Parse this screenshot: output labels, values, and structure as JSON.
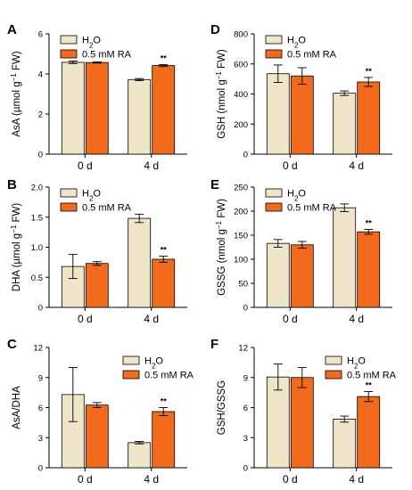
{
  "colors": {
    "h2o": "#efe6c9",
    "ra": "#f36a1b"
  },
  "legend": {
    "h2o_main": "H",
    "h2o_sub": "2",
    "h2o_tail": "O",
    "ra": "0.5 mM RA"
  },
  "categories": [
    "0 d",
    "4 d"
  ],
  "chart_data": [
    {
      "panel": "A",
      "type": "bar",
      "ylabel_main": "AsA (µmol g",
      "ylabel_sup": "−1",
      "ylabel_tail": " FW)",
      "ylim": [
        0,
        6
      ],
      "yticks": [
        "0",
        "2",
        "4",
        "6"
      ],
      "categories": [
        "0 d",
        "4 d"
      ],
      "series": [
        {
          "name": "H2O",
          "values": [
            4.58,
            3.72
          ],
          "errors": [
            0.06,
            0.05
          ]
        },
        {
          "name": "0.5 mM RA",
          "values": [
            4.57,
            4.42
          ],
          "errors": [
            0.03,
            0.05
          ]
        }
      ],
      "annotations": [
        {
          "text": "**",
          "category": "4 d",
          "series": "0.5 mM RA"
        }
      ]
    },
    {
      "panel": "B",
      "type": "bar",
      "ylabel_main": "DHA (µmol g",
      "ylabel_sup": "−1",
      "ylabel_tail": " FW)",
      "ylim": [
        0,
        2.0
      ],
      "yticks": [
        "0",
        "0.5",
        "1.0",
        "1.5",
        "2.0"
      ],
      "categories": [
        "0 d",
        "4 d"
      ],
      "series": [
        {
          "name": "H2O",
          "values": [
            0.68,
            1.48
          ],
          "errors": [
            0.2,
            0.07
          ]
        },
        {
          "name": "0.5 mM RA",
          "values": [
            0.73,
            0.8
          ],
          "errors": [
            0.03,
            0.05
          ]
        }
      ],
      "annotations": [
        {
          "text": "**",
          "category": "4 d",
          "series": "0.5 mM RA"
        }
      ]
    },
    {
      "panel": "C",
      "type": "bar",
      "ylabel_main": "AsA/DHA",
      "ylabel_sup": "",
      "ylabel_tail": "",
      "ylim": [
        0,
        12
      ],
      "yticks": [
        "0",
        "3",
        "6",
        "9",
        "12"
      ],
      "categories": [
        "0 d",
        "4 d"
      ],
      "series": [
        {
          "name": "H2O",
          "values": [
            7.3,
            2.5
          ],
          "errors": [
            2.7,
            0.12
          ]
        },
        {
          "name": "0.5 mM RA",
          "values": [
            6.25,
            5.6
          ],
          "errors": [
            0.25,
            0.4
          ]
        }
      ],
      "annotations": [
        {
          "text": "**",
          "category": "4 d",
          "series": "0.5 mM RA"
        }
      ]
    },
    {
      "panel": "D",
      "type": "bar",
      "ylabel_main": "GSH (nmol g",
      "ylabel_sup": "−1",
      "ylabel_tail": " FW)",
      "ylim": [
        0,
        800
      ],
      "yticks": [
        "0",
        "200",
        "400",
        "600",
        "800"
      ],
      "categories": [
        "0 d",
        "4 d"
      ],
      "series": [
        {
          "name": "H2O",
          "values": [
            535,
            405
          ],
          "errors": [
            58,
            15
          ]
        },
        {
          "name": "0.5 mM RA",
          "values": [
            520,
            480
          ],
          "errors": [
            55,
            30
          ]
        }
      ],
      "annotations": [
        {
          "text": "**",
          "category": "4 d",
          "series": "0.5 mM RA"
        }
      ]
    },
    {
      "panel": "E",
      "type": "bar",
      "ylabel_main": "GSSG (nmol g",
      "ylabel_sup": "−1",
      "ylabel_tail": " FW)",
      "ylim": [
        0,
        250
      ],
      "yticks": [
        "0",
        "50",
        "100",
        "150",
        "200",
        "250"
      ],
      "categories": [
        "0 d",
        "4 d"
      ],
      "series": [
        {
          "name": "H2O",
          "values": [
            133,
            207
          ],
          "errors": [
            8,
            8
          ]
        },
        {
          "name": "0.5 mM RA",
          "values": [
            130,
            157
          ],
          "errors": [
            7,
            5
          ]
        }
      ],
      "annotations": [
        {
          "text": "**",
          "category": "4 d",
          "series": "0.5 mM RA"
        }
      ]
    },
    {
      "panel": "F",
      "type": "bar",
      "ylabel_main": "GSH/GSSG",
      "ylabel_sup": "",
      "ylabel_tail": "",
      "ylim": [
        0,
        12
      ],
      "yticks": [
        "0",
        "3",
        "6",
        "9",
        "12"
      ],
      "categories": [
        "0 d",
        "4 d"
      ],
      "series": [
        {
          "name": "H2O",
          "values": [
            9.05,
            4.85
          ],
          "errors": [
            1.3,
            0.3
          ]
        },
        {
          "name": "0.5 mM RA",
          "values": [
            9.0,
            7.1
          ],
          "errors": [
            1.0,
            0.5
          ]
        }
      ],
      "annotations": [
        {
          "text": "**",
          "category": "4 d",
          "series": "0.5 mM RA"
        }
      ]
    }
  ]
}
